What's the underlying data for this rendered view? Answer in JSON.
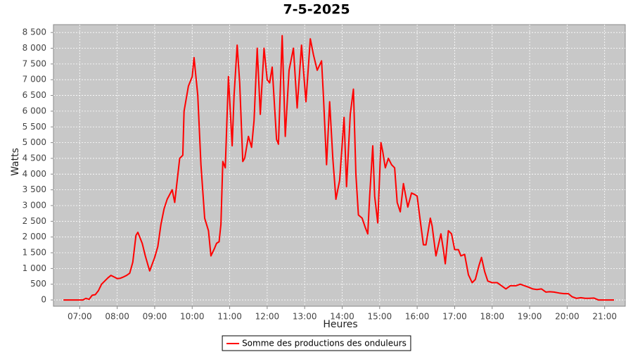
{
  "chart_data": {
    "type": "line",
    "title": "7-5-2025",
    "x_label": "Heures",
    "y_label": "Watts",
    "x": [
      "06:34",
      "06:45",
      "06:55",
      "07:05",
      "07:10",
      "07:15",
      "07:20",
      "07:25",
      "07:30",
      "07:35",
      "07:40",
      "07:45",
      "07:50",
      "07:55",
      "08:00",
      "08:05",
      "08:10",
      "08:15",
      "08:20",
      "08:25",
      "08:30",
      "08:33",
      "08:40",
      "08:45",
      "08:52",
      "09:00",
      "09:05",
      "09:10",
      "09:15",
      "09:20",
      "09:28",
      "09:32",
      "09:40",
      "09:45",
      "09:47",
      "09:54",
      "10:00",
      "10:03",
      "10:09",
      "10:14",
      "10:20",
      "10:26",
      "10:30",
      "10:36",
      "10:39",
      "10:43",
      "10:46",
      "10:49",
      "10:53",
      "10:58",
      "11:04",
      "11:07",
      "11:12",
      "11:16",
      "11:21",
      "11:24",
      "11:30",
      "11:35",
      "11:39",
      "11:44",
      "11:49",
      "11:55",
      "12:00",
      "12:04",
      "12:08",
      "12:15",
      "12:18",
      "12:24",
      "12:29",
      "12:35",
      "12:42",
      "12:48",
      "12:55",
      "13:02",
      "13:09",
      "13:14",
      "13:20",
      "13:27",
      "13:30",
      "13:35",
      "13:40",
      "13:45",
      "13:50",
      "13:56",
      "14:03",
      "14:07",
      "14:13",
      "14:18",
      "14:22",
      "14:26",
      "14:32",
      "14:37",
      "14:41",
      "14:44",
      "14:49",
      "14:52",
      "14:57",
      "15:02",
      "15:05",
      "15:09",
      "15:14",
      "15:19",
      "15:24",
      "15:28",
      "15:33",
      "15:38",
      "15:45",
      "15:51",
      "15:56",
      "16:00",
      "16:05",
      "16:10",
      "16:14",
      "16:21",
      "16:24",
      "16:30",
      "16:38",
      "16:42",
      "16:45",
      "16:50",
      "16:55",
      "17:00",
      "17:06",
      "17:10",
      "17:16",
      "17:22",
      "17:28",
      "17:33",
      "17:39",
      "17:43",
      "17:48",
      "17:53",
      "18:00",
      "18:08",
      "18:15",
      "18:22",
      "18:29",
      "18:38",
      "18:45",
      "18:52",
      "18:59",
      "19:05",
      "19:12",
      "19:19",
      "19:26",
      "19:32",
      "19:39",
      "19:47",
      "19:55",
      "20:02",
      "20:08",
      "20:15",
      "20:22",
      "20:29",
      "20:35",
      "20:43",
      "20:50",
      "20:58",
      "21:07",
      "21:15"
    ],
    "series": [
      {
        "name": "Somme des productions des onduleurs",
        "color": "#ff0000",
        "values": [
          0,
          0,
          0,
          0,
          50,
          20,
          150,
          170,
          300,
          500,
          600,
          700,
          780,
          730,
          680,
          690,
          730,
          780,
          850,
          1200,
          2050,
          2150,
          1800,
          1400,
          920,
          1350,
          1700,
          2400,
          2900,
          3200,
          3500,
          3100,
          4500,
          4600,
          6000,
          6800,
          7100,
          7700,
          6500,
          4300,
          2600,
          2200,
          1400,
          1650,
          1800,
          1850,
          2400,
          4400,
          4200,
          7100,
          4900,
          6500,
          8100,
          6900,
          4400,
          4500,
          5200,
          4850,
          5700,
          8000,
          5900,
          8000,
          7000,
          6900,
          7400,
          5100,
          4950,
          8400,
          5200,
          7300,
          8000,
          6100,
          8100,
          6300,
          8300,
          7800,
          7300,
          7600,
          6500,
          4300,
          6300,
          4500,
          3200,
          3800,
          5800,
          3600,
          5900,
          6700,
          4000,
          2700,
          2600,
          2300,
          2100,
          3300,
          4900,
          3300,
          2450,
          5000,
          4700,
          4200,
          4500,
          4300,
          4200,
          3100,
          2800,
          3700,
          2950,
          3400,
          3350,
          3300,
          2500,
          1750,
          1750,
          2600,
          2350,
          1400,
          2100,
          1600,
          1150,
          2200,
          2100,
          1600,
          1600,
          1400,
          1450,
          800,
          550,
          650,
          1100,
          1350,
          900,
          600,
          550,
          550,
          450,
          350,
          450,
          450,
          500,
          450,
          400,
          350,
          330,
          350,
          250,
          260,
          250,
          220,
          200,
          200,
          100,
          50,
          70,
          50,
          50,
          60,
          0,
          0,
          0,
          0
        ]
      }
    ],
    "xlim": [
      "06:18",
      "21:33"
    ],
    "xticks": [
      "07:00",
      "08:00",
      "09:00",
      "10:00",
      "11:00",
      "12:00",
      "13:00",
      "14:00",
      "15:00",
      "16:00",
      "17:00",
      "18:00",
      "19:00",
      "20:00",
      "21:00"
    ],
    "ylim": [
      -200,
      8750
    ],
    "yticks": [
      0,
      500,
      {
        "value": 1000,
        "label": "1 000"
      },
      {
        "value": 1500,
        "label": "1 500"
      },
      {
        "value": 2000,
        "label": "2 000"
      },
      {
        "value": 2500,
        "label": "2 500"
      },
      {
        "value": 3000,
        "label": "3 000"
      },
      {
        "value": 3500,
        "label": "3 500"
      },
      {
        "value": 4000,
        "label": "4 000"
      },
      {
        "value": 4500,
        "label": "4 500"
      },
      {
        "value": 5000,
        "label": "5 000"
      },
      {
        "value": 5500,
        "label": "5 500"
      },
      {
        "value": 6000,
        "label": "6 000"
      },
      {
        "value": 6500,
        "label": "6 500"
      },
      {
        "value": 7000,
        "label": "7 000"
      },
      {
        "value": 7500,
        "label": "7 500"
      },
      {
        "value": 8000,
        "label": "8 000"
      },
      {
        "value": 8500,
        "label": "8 500"
      }
    ],
    "grid": true,
    "plot_background": "#c8c8c8",
    "legend": "bottom"
  }
}
